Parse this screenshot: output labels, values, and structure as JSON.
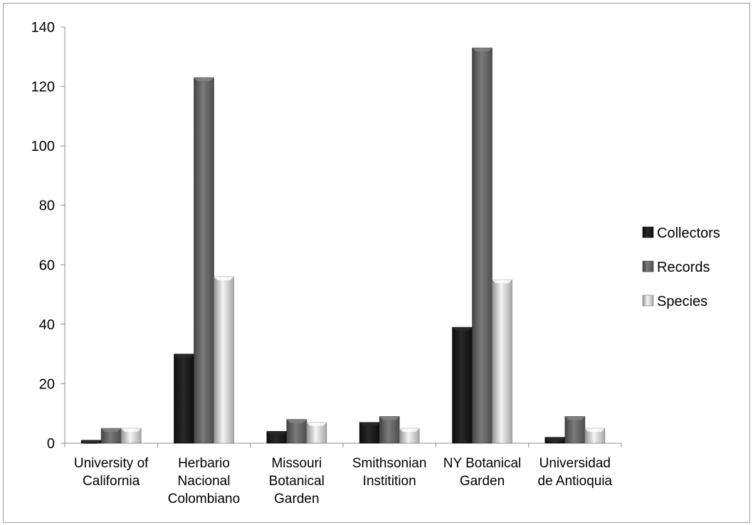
{
  "chart_data": {
    "type": "bar",
    "title": "",
    "xlabel": "",
    "ylabel": "",
    "ylim": [
      0,
      140
    ],
    "yticks": [
      0,
      20,
      40,
      60,
      80,
      100,
      120,
      140
    ],
    "grid": false,
    "legend_position": "right",
    "categories": [
      [
        "University of",
        "California"
      ],
      [
        "Herbario",
        "Nacional",
        "Colombiano"
      ],
      [
        "Missouri",
        "Botanical",
        "Garden"
      ],
      [
        "Smithsonian",
        "Institition"
      ],
      [
        "NY Botanical",
        "Garden"
      ],
      [
        "Universidad",
        "de Antioquia"
      ]
    ],
    "series": [
      {
        "name": "Collectors",
        "color": "#111111",
        "values": [
          1,
          30,
          4,
          7,
          39,
          2
        ]
      },
      {
        "name": "Records",
        "color": "#5a5a5a",
        "values": [
          5,
          123,
          8,
          9,
          133,
          9
        ]
      },
      {
        "name": "Species",
        "color": "#c4c4c4",
        "values": [
          5,
          56,
          7,
          5,
          55,
          5
        ]
      }
    ]
  }
}
